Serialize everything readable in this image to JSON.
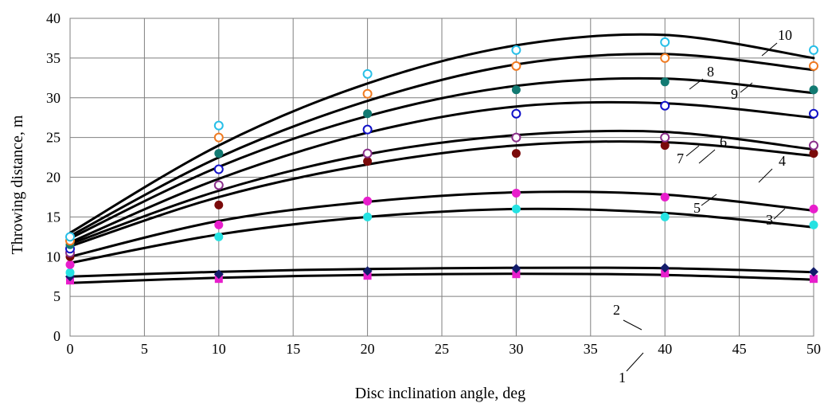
{
  "chart_data": {
    "type": "scatter",
    "title": "",
    "xlabel": "Disc inclination angle, deg",
    "ylabel": "Throwing distance, m",
    "xlim": [
      0,
      50
    ],
    "ylim": [
      0,
      40
    ],
    "xticks": [
      0,
      5,
      10,
      15,
      20,
      25,
      30,
      35,
      40,
      45,
      50
    ],
    "yticks": [
      0,
      5,
      10,
      15,
      20,
      25,
      30,
      35,
      40
    ],
    "grid": true,
    "legend": "none",
    "x": [
      0,
      10,
      20,
      30,
      40,
      50
    ],
    "series": [
      {
        "name": "1",
        "marker": "filled-square",
        "color": "#e81ecc",
        "points": [
          7,
          7.2,
          7.6,
          7.8,
          7.9,
          7.2
        ],
        "fit": [
          [
            0,
            6.7
          ],
          [
            10,
            7.35
          ],
          [
            20,
            7.7
          ],
          [
            30,
            7.85
          ],
          [
            40,
            7.7
          ],
          [
            50,
            7.1
          ]
        ]
      },
      {
        "name": "2",
        "marker": "filled-diamond",
        "color": "#131c6b",
        "points": [
          7.5,
          7.8,
          8.2,
          8.5,
          8.6,
          8.1
        ],
        "fit": [
          [
            0,
            7.5
          ],
          [
            10,
            8.1
          ],
          [
            20,
            8.45
          ],
          [
            30,
            8.6
          ],
          [
            40,
            8.55
          ],
          [
            50,
            8.05
          ]
        ]
      },
      {
        "name": "3",
        "marker": "filled-circle",
        "color": "#25e2e2",
        "points": [
          8,
          12.5,
          15,
          16,
          15,
          14
        ],
        "fit": [
          [
            0,
            9.2
          ],
          [
            10,
            12.8
          ],
          [
            20,
            15.0
          ],
          [
            30,
            16.0
          ],
          [
            40,
            15.5
          ],
          [
            50,
            13.7
          ]
        ]
      },
      {
        "name": "4",
        "marker": "filled-circle",
        "color": "#e81ecc",
        "points": [
          9,
          14,
          17,
          18,
          17.5,
          16
        ],
        "fit": [
          [
            0,
            10.0
          ],
          [
            10,
            14.5
          ],
          [
            20,
            16.9
          ],
          [
            30,
            18.1
          ],
          [
            40,
            17.8
          ],
          [
            50,
            15.8
          ]
        ]
      },
      {
        "name": "5",
        "marker": "filled-circle",
        "color": "#7a0a0a",
        "points": [
          10,
          16.5,
          22,
          23,
          24,
          23
        ],
        "fit": [
          [
            0,
            11.3
          ],
          [
            10,
            17.5
          ],
          [
            20,
            21.6
          ],
          [
            30,
            24.0
          ],
          [
            40,
            24.4
          ],
          [
            50,
            22.7
          ]
        ]
      },
      {
        "name": "6",
        "marker": "open-circle",
        "color": "#8a2e8a",
        "points": [
          10.5,
          19,
          23,
          25,
          25,
          24
        ],
        "fit": [
          [
            0,
            11.6
          ],
          [
            10,
            18.3
          ],
          [
            20,
            22.9
          ],
          [
            30,
            25.3
          ],
          [
            40,
            25.7
          ],
          [
            50,
            23.5
          ]
        ]
      },
      {
        "name": "7",
        "marker": "open-circle",
        "color": "#1010c8",
        "points": [
          11,
          21,
          26,
          28,
          29,
          28
        ],
        "fit": [
          [
            0,
            11.8
          ],
          [
            10,
            19.8
          ],
          [
            20,
            25.6
          ],
          [
            30,
            28.9
          ],
          [
            40,
            29.3
          ],
          [
            50,
            27.5
          ]
        ]
      },
      {
        "name": "8",
        "marker": "filled-circle",
        "color": "#127a72",
        "points": [
          11.5,
          23,
          28,
          31,
          32,
          31
        ],
        "fit": [
          [
            0,
            12.3
          ],
          [
            10,
            21.3
          ],
          [
            20,
            27.7
          ],
          [
            30,
            31.5
          ],
          [
            40,
            32.4
          ],
          [
            50,
            30.6
          ]
        ]
      },
      {
        "name": "9",
        "marker": "open-circle",
        "color": "#f07a20",
        "points": [
          12,
          25,
          30.5,
          34,
          35,
          34
        ],
        "fit": [
          [
            0,
            12.6
          ],
          [
            10,
            22.5
          ],
          [
            20,
            29.6
          ],
          [
            30,
            34.2
          ],
          [
            40,
            35.5
          ],
          [
            50,
            33.5
          ]
        ]
      },
      {
        "name": "10",
        "marker": "open-circle",
        "color": "#27bfe8",
        "points": [
          12.5,
          26.5,
          33,
          36,
          37,
          36
        ],
        "fit": [
          [
            0,
            13.0
          ],
          [
            10,
            24.0
          ],
          [
            20,
            31.8
          ],
          [
            30,
            36.6
          ],
          [
            40,
            37.9
          ],
          [
            50,
            35.0
          ]
        ]
      }
    ]
  }
}
